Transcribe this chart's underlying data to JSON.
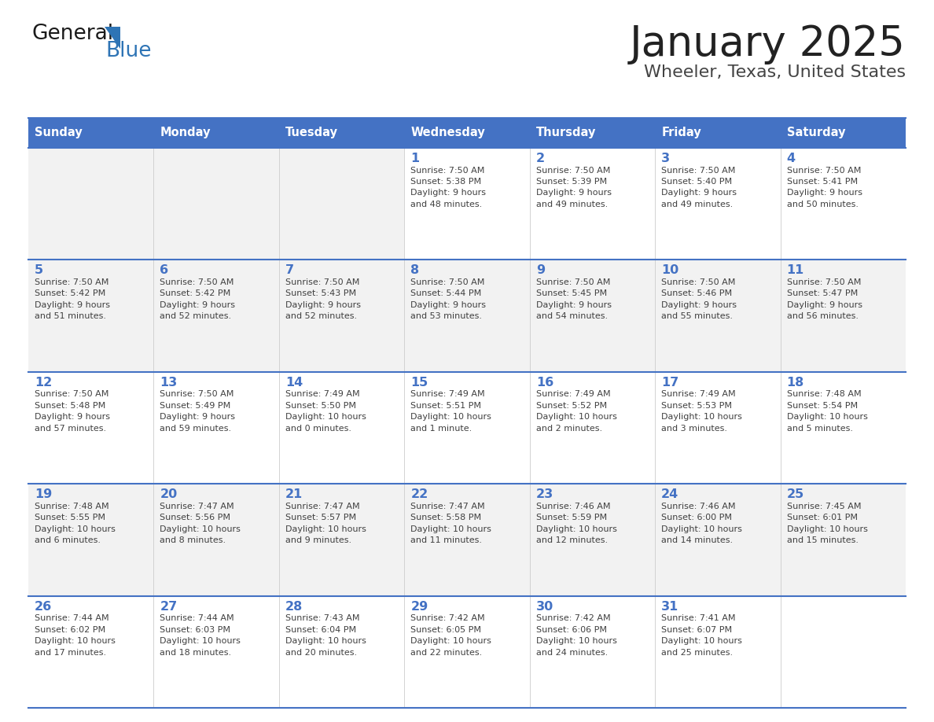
{
  "title": "January 2025",
  "subtitle": "Wheeler, Texas, United States",
  "days_of_week": [
    "Sunday",
    "Monday",
    "Tuesday",
    "Wednesday",
    "Thursday",
    "Friday",
    "Saturday"
  ],
  "header_bg": "#4472C4",
  "header_text": "#FFFFFF",
  "row_bg_odd": "#FFFFFF",
  "row_bg_even": "#F2F2F2",
  "day_number_color": "#4472C4",
  "text_color": "#404040",
  "border_color": "#4472C4",
  "logo_general_color": "#222222",
  "logo_blue_color": "#2E74B5",
  "weeks": [
    [
      {
        "day": null,
        "sunrise": null,
        "sunset": null,
        "daylight": null
      },
      {
        "day": null,
        "sunrise": null,
        "sunset": null,
        "daylight": null
      },
      {
        "day": null,
        "sunrise": null,
        "sunset": null,
        "daylight": null
      },
      {
        "day": 1,
        "sunrise": "7:50 AM",
        "sunset": "5:38 PM",
        "daylight": "9 hours\nand 48 minutes."
      },
      {
        "day": 2,
        "sunrise": "7:50 AM",
        "sunset": "5:39 PM",
        "daylight": "9 hours\nand 49 minutes."
      },
      {
        "day": 3,
        "sunrise": "7:50 AM",
        "sunset": "5:40 PM",
        "daylight": "9 hours\nand 49 minutes."
      },
      {
        "day": 4,
        "sunrise": "7:50 AM",
        "sunset": "5:41 PM",
        "daylight": "9 hours\nand 50 minutes."
      }
    ],
    [
      {
        "day": 5,
        "sunrise": "7:50 AM",
        "sunset": "5:42 PM",
        "daylight": "9 hours\nand 51 minutes."
      },
      {
        "day": 6,
        "sunrise": "7:50 AM",
        "sunset": "5:42 PM",
        "daylight": "9 hours\nand 52 minutes."
      },
      {
        "day": 7,
        "sunrise": "7:50 AM",
        "sunset": "5:43 PM",
        "daylight": "9 hours\nand 52 minutes."
      },
      {
        "day": 8,
        "sunrise": "7:50 AM",
        "sunset": "5:44 PM",
        "daylight": "9 hours\nand 53 minutes."
      },
      {
        "day": 9,
        "sunrise": "7:50 AM",
        "sunset": "5:45 PM",
        "daylight": "9 hours\nand 54 minutes."
      },
      {
        "day": 10,
        "sunrise": "7:50 AM",
        "sunset": "5:46 PM",
        "daylight": "9 hours\nand 55 minutes."
      },
      {
        "day": 11,
        "sunrise": "7:50 AM",
        "sunset": "5:47 PM",
        "daylight": "9 hours\nand 56 minutes."
      }
    ],
    [
      {
        "day": 12,
        "sunrise": "7:50 AM",
        "sunset": "5:48 PM",
        "daylight": "9 hours\nand 57 minutes."
      },
      {
        "day": 13,
        "sunrise": "7:50 AM",
        "sunset": "5:49 PM",
        "daylight": "9 hours\nand 59 minutes."
      },
      {
        "day": 14,
        "sunrise": "7:49 AM",
        "sunset": "5:50 PM",
        "daylight": "10 hours\nand 0 minutes."
      },
      {
        "day": 15,
        "sunrise": "7:49 AM",
        "sunset": "5:51 PM",
        "daylight": "10 hours\nand 1 minute."
      },
      {
        "day": 16,
        "sunrise": "7:49 AM",
        "sunset": "5:52 PM",
        "daylight": "10 hours\nand 2 minutes."
      },
      {
        "day": 17,
        "sunrise": "7:49 AM",
        "sunset": "5:53 PM",
        "daylight": "10 hours\nand 3 minutes."
      },
      {
        "day": 18,
        "sunrise": "7:48 AM",
        "sunset": "5:54 PM",
        "daylight": "10 hours\nand 5 minutes."
      }
    ],
    [
      {
        "day": 19,
        "sunrise": "7:48 AM",
        "sunset": "5:55 PM",
        "daylight": "10 hours\nand 6 minutes."
      },
      {
        "day": 20,
        "sunrise": "7:47 AM",
        "sunset": "5:56 PM",
        "daylight": "10 hours\nand 8 minutes."
      },
      {
        "day": 21,
        "sunrise": "7:47 AM",
        "sunset": "5:57 PM",
        "daylight": "10 hours\nand 9 minutes."
      },
      {
        "day": 22,
        "sunrise": "7:47 AM",
        "sunset": "5:58 PM",
        "daylight": "10 hours\nand 11 minutes."
      },
      {
        "day": 23,
        "sunrise": "7:46 AM",
        "sunset": "5:59 PM",
        "daylight": "10 hours\nand 12 minutes."
      },
      {
        "day": 24,
        "sunrise": "7:46 AM",
        "sunset": "6:00 PM",
        "daylight": "10 hours\nand 14 minutes."
      },
      {
        "day": 25,
        "sunrise": "7:45 AM",
        "sunset": "6:01 PM",
        "daylight": "10 hours\nand 15 minutes."
      }
    ],
    [
      {
        "day": 26,
        "sunrise": "7:44 AM",
        "sunset": "6:02 PM",
        "daylight": "10 hours\nand 17 minutes."
      },
      {
        "day": 27,
        "sunrise": "7:44 AM",
        "sunset": "6:03 PM",
        "daylight": "10 hours\nand 18 minutes."
      },
      {
        "day": 28,
        "sunrise": "7:43 AM",
        "sunset": "6:04 PM",
        "daylight": "10 hours\nand 20 minutes."
      },
      {
        "day": 29,
        "sunrise": "7:42 AM",
        "sunset": "6:05 PM",
        "daylight": "10 hours\nand 22 minutes."
      },
      {
        "day": 30,
        "sunrise": "7:42 AM",
        "sunset": "6:06 PM",
        "daylight": "10 hours\nand 24 minutes."
      },
      {
        "day": 31,
        "sunrise": "7:41 AM",
        "sunset": "6:07 PM",
        "daylight": "10 hours\nand 25 minutes."
      },
      {
        "day": null,
        "sunrise": null,
        "sunset": null,
        "daylight": null
      }
    ]
  ]
}
